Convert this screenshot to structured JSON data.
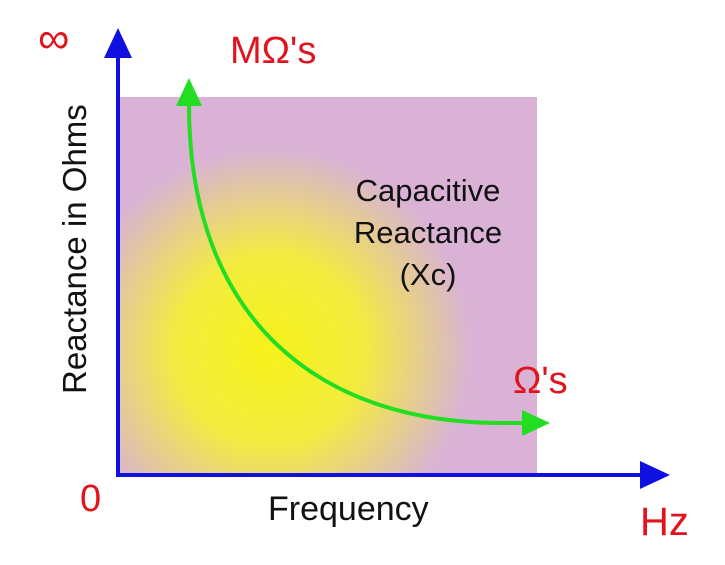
{
  "labels": {
    "infinity": "∞",
    "megaohms": "MΩ's",
    "title_line1": "Capacitive",
    "title_line2": "Reactance",
    "title_line3": "(Xc)",
    "ohms": "Ω's",
    "zero": "0",
    "x_axis": "Frequency",
    "x_unit": "Hz",
    "y_axis": "Reactance in Ohms"
  },
  "colors": {
    "axis": "#1010e0",
    "curve": "#22dd22",
    "label_red": "#e0141e",
    "region": "#d9b2d6",
    "highlight": "#f4f020"
  }
}
